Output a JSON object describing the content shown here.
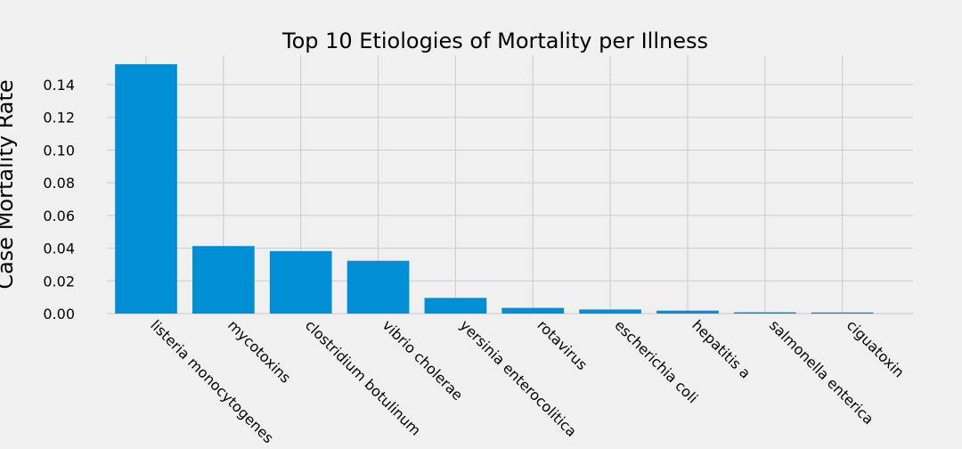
{
  "chart_data": {
    "type": "bar",
    "title": "Top 10 Etiologies of Mortality per Illness",
    "xlabel": "",
    "ylabel": "Case Mortality Rate",
    "categories": [
      "listeria monocytogenes",
      "mycotoxins",
      "clostridium botulinum",
      "vibrio cholerae",
      "yersinia enterocolitica",
      "rotavirus",
      "escherichia coli",
      "hepatitis a",
      "salmonella enterica",
      "ciguatoxin"
    ],
    "values": [
      0.1525,
      0.0413,
      0.0382,
      0.0323,
      0.0096,
      0.0035,
      0.0025,
      0.0018,
      0.0008,
      0.0007
    ],
    "ylim": [
      0,
      0.158
    ],
    "yticks": [
      "0.00",
      "0.02",
      "0.04",
      "0.06",
      "0.08",
      "0.10",
      "0.12",
      "0.14"
    ],
    "grid": true,
    "bar_color": "#008fd5",
    "background_color": "#f0f0f0",
    "grid_color": "#cbcbcb"
  }
}
